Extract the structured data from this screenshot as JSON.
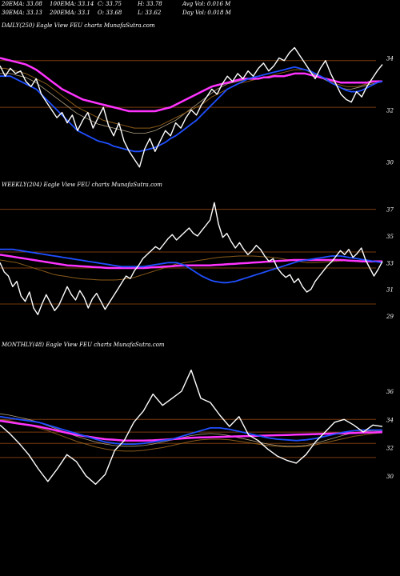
{
  "header": {
    "row1": [
      "20EMA: 33.08",
      "100EMA: 33.14",
      "C: 33.75",
      "H: 33.78",
      "Avg Vol: 0.016  M"
    ],
    "row2": [
      "30EMA: 33.13",
      "200EMA: 33.1",
      "O: 33.68",
      "L: 33.62",
      "Day Vol: 0.018  M"
    ]
  },
  "colors": {
    "background": "#000000",
    "price": "#ffffff",
    "ema_blue": "#1f4fff",
    "ema_magenta": "#ff33ff",
    "ema_orange": "#8a5a1a",
    "ema_gray": "#b0a080",
    "gridline": "#7a3a10"
  },
  "chart_data": [
    {
      "type": "line",
      "title": "DAILY(250) Eagle  View  FEU charts MunafaSutra.com",
      "yticks": [
        "34",
        "32",
        "30"
      ],
      "ylim": [
        29.3,
        35.0
      ],
      "price": [
        33.7,
        33.3,
        33.6,
        33.4,
        33.5,
        33.1,
        32.9,
        33.2,
        32.6,
        32.3,
        32.0,
        31.7,
        31.9,
        31.5,
        31.8,
        31.2,
        31.6,
        31.9,
        31.3,
        31.7,
        32.1,
        31.4,
        31.0,
        31.5,
        30.8,
        30.4,
        30.1,
        29.8,
        30.5,
        30.9,
        30.4,
        30.8,
        31.2,
        31.0,
        31.5,
        31.3,
        31.7,
        32.0,
        31.8,
        32.2,
        32.5,
        32.8,
        32.6,
        33.0,
        33.3,
        33.1,
        33.4,
        33.2,
        33.5,
        33.3,
        33.6,
        33.8,
        33.5,
        33.7,
        34.0,
        33.9,
        34.2,
        34.4,
        34.1,
        33.8,
        33.5,
        33.2,
        33.6,
        33.9,
        33.4,
        33.0,
        32.6,
        32.4,
        32.3,
        32.7,
        32.5,
        32.9,
        33.2,
        33.5,
        33.75
      ],
      "ema_blue": [
        33.3,
        33.3,
        33.3,
        33.2,
        33.1,
        33.0,
        32.9,
        32.8,
        32.6,
        32.4,
        32.2,
        32.0,
        31.8,
        31.6,
        31.4,
        31.2,
        31.1,
        31.0,
        30.9,
        30.8,
        30.75,
        30.7,
        30.6,
        30.55,
        30.5,
        30.45,
        30.4,
        30.4,
        30.45,
        30.5,
        30.55,
        30.65,
        30.75,
        30.9,
        31.0,
        31.15,
        31.3,
        31.45,
        31.6,
        31.8,
        32.0,
        32.2,
        32.4,
        32.6,
        32.8,
        32.9,
        33.0,
        33.1,
        33.2,
        33.25,
        33.3,
        33.35,
        33.4,
        33.45,
        33.5,
        33.55,
        33.6,
        33.65,
        33.6,
        33.55,
        33.5,
        33.4,
        33.3,
        33.2,
        33.05,
        32.95,
        32.85,
        32.75,
        32.7,
        32.7,
        32.75,
        32.85,
        32.95,
        33.05,
        33.1
      ],
      "ema_magenta": [
        34.0,
        33.95,
        33.9,
        33.85,
        33.8,
        33.75,
        33.65,
        33.55,
        33.4,
        33.25,
        33.1,
        32.95,
        32.8,
        32.7,
        32.6,
        32.5,
        32.4,
        32.35,
        32.3,
        32.25,
        32.2,
        32.15,
        32.1,
        32.05,
        32.0,
        31.95,
        31.95,
        31.95,
        31.95,
        31.95,
        31.95,
        32.0,
        32.05,
        32.1,
        32.2,
        32.3,
        32.4,
        32.5,
        32.6,
        32.7,
        32.8,
        32.9,
        32.95,
        33.0,
        33.05,
        33.1,
        33.15,
        33.2,
        33.2,
        33.2,
        33.2,
        33.25,
        33.25,
        33.3,
        33.3,
        33.3,
        33.35,
        33.4,
        33.4,
        33.4,
        33.35,
        33.3,
        33.25,
        33.2,
        33.15,
        33.1,
        33.05,
        33.05,
        33.05,
        33.05,
        33.05,
        33.05,
        33.1,
        33.1,
        33.1
      ],
      "ema_orange": [
        33.6,
        33.6,
        33.55,
        33.5,
        33.45,
        33.4,
        33.3,
        33.2,
        33.1,
        33.0,
        32.85,
        32.7,
        32.55,
        32.4,
        32.25,
        32.1,
        32.0,
        31.9,
        31.8,
        31.7,
        31.6,
        31.55,
        31.5,
        31.45,
        31.4,
        31.35,
        31.3,
        31.3,
        31.3,
        31.3,
        31.35,
        31.4,
        31.5,
        31.6,
        31.7,
        31.8,
        31.9,
        32.0,
        32.1,
        32.2,
        32.35,
        32.5,
        32.6,
        32.7,
        32.8,
        32.9,
        33.0,
        33.05,
        33.1,
        33.15,
        33.2,
        33.25,
        33.3,
        33.35,
        33.4,
        33.45,
        33.5,
        33.55,
        33.55,
        33.55,
        33.5,
        33.4,
        33.3,
        33.2,
        33.1,
        33.0,
        32.95,
        32.9,
        32.9,
        32.9,
        32.95,
        33.0,
        33.05,
        33.1,
        33.12
      ],
      "ema_gray": [
        33.4,
        33.4,
        33.4,
        33.35,
        33.3,
        33.25,
        33.15,
        33.05,
        32.9,
        32.75,
        32.6,
        32.45,
        32.3,
        32.15,
        32.0,
        31.85,
        31.75,
        31.65,
        31.55,
        31.45,
        31.4,
        31.35,
        31.3,
        31.25,
        31.2,
        31.15,
        31.1,
        31.1,
        31.1,
        31.15,
        31.2,
        31.3,
        31.4,
        31.5,
        31.6,
        31.75,
        31.9,
        32.05,
        32.2,
        32.35,
        32.5,
        32.65,
        32.8,
        32.9,
        33.0,
        33.05,
        33.1,
        33.15,
        33.2,
        33.25,
        33.3,
        33.35,
        33.4,
        33.45,
        33.5,
        33.55,
        33.6,
        33.65,
        33.6,
        33.55,
        33.45,
        33.35,
        33.25,
        33.15,
        33.05,
        32.95,
        32.85,
        32.8,
        32.8,
        32.85,
        32.9,
        32.95,
        33.0,
        33.05,
        33.08
      ],
      "hlines": [
        33.9,
        32.1
      ]
    },
    {
      "type": "line",
      "title": "WEEKLY(204) Eagle  View  FEU charts MunafaSutra.com",
      "yticks": [
        "37",
        "35",
        "33",
        "31",
        "29"
      ],
      "ylim": [
        27.5,
        38.0
      ],
      "price": [
        33.0,
        32.3,
        32.0,
        31.2,
        31.6,
        30.5,
        30.1,
        30.8,
        29.6,
        29.1,
        29.9,
        30.6,
        30.0,
        29.4,
        29.8,
        30.5,
        31.2,
        30.6,
        30.2,
        30.9,
        30.4,
        29.6,
        30.3,
        30.7,
        30.1,
        29.5,
        30.0,
        30.5,
        31.0,
        31.5,
        32.0,
        31.8,
        32.4,
        32.8,
        33.3,
        33.6,
        33.9,
        34.2,
        34.0,
        34.4,
        34.8,
        35.1,
        34.7,
        35.0,
        35.3,
        35.6,
        35.2,
        35.0,
        35.4,
        35.8,
        36.2,
        37.5,
        35.9,
        34.9,
        35.2,
        34.6,
        34.1,
        34.5,
        34.0,
        33.6,
        33.9,
        34.3,
        34.0,
        33.5,
        33.1,
        33.3,
        32.6,
        32.2,
        31.9,
        32.1,
        31.5,
        31.8,
        31.2,
        30.8,
        31.0,
        31.6,
        32.0,
        32.4,
        32.8,
        33.1,
        33.5,
        33.9,
        33.6,
        34.0,
        33.4,
        33.7,
        34.1,
        33.2,
        32.6,
        32.0,
        32.5,
        33.1
      ],
      "ema_blue": [
        34.0,
        34.0,
        34.0,
        34.0,
        33.95,
        33.9,
        33.85,
        33.8,
        33.75,
        33.7,
        33.65,
        33.6,
        33.55,
        33.5,
        33.45,
        33.4,
        33.35,
        33.3,
        33.25,
        33.2,
        33.15,
        33.1,
        33.05,
        33.0,
        32.95,
        32.9,
        32.85,
        32.8,
        32.75,
        32.7,
        32.7,
        32.7,
        32.7,
        32.7,
        32.7,
        32.75,
        32.8,
        32.85,
        32.9,
        32.95,
        33.0,
        33.0,
        33.0,
        32.9,
        32.8,
        32.6,
        32.4,
        32.2,
        32.0,
        31.85,
        31.7,
        31.6,
        31.55,
        31.5,
        31.5,
        31.55,
        31.6,
        31.7,
        31.8,
        31.9,
        32.0,
        32.1,
        32.2,
        32.3,
        32.4,
        32.5,
        32.6,
        32.7,
        32.8,
        32.9,
        33.0,
        33.1,
        33.15,
        33.2,
        33.25,
        33.3,
        33.35,
        33.4,
        33.45,
        33.5,
        33.5,
        33.5,
        33.45,
        33.4,
        33.35,
        33.3,
        33.25,
        33.2,
        33.15,
        33.1,
        33.05,
        33.0
      ],
      "ema_magenta": [
        33.6,
        33.55,
        33.5,
        33.45,
        33.4,
        33.35,
        33.3,
        33.25,
        33.2,
        33.15,
        33.1,
        33.05,
        33.0,
        32.95,
        32.9,
        32.85,
        32.8,
        32.78,
        32.76,
        32.74,
        32.72,
        32.7,
        32.68,
        32.66,
        32.64,
        32.62,
        32.6,
        32.6,
        32.6,
        32.6,
        32.6,
        32.6,
        32.6,
        32.6,
        32.6,
        32.62,
        32.64,
        32.66,
        32.68,
        32.7,
        32.72,
        32.74,
        32.76,
        32.78,
        32.8,
        32.8,
        32.8,
        32.8,
        32.8,
        32.8,
        32.8,
        32.82,
        32.84,
        32.86,
        32.88,
        32.9,
        32.92,
        32.94,
        32.96,
        32.98,
        33.0,
        33.02,
        33.04,
        33.06,
        33.08,
        33.1,
        33.12,
        33.14,
        33.16,
        33.18,
        33.2,
        33.2,
        33.2,
        33.2,
        33.2,
        33.2,
        33.2,
        33.2,
        33.2,
        33.2,
        33.2,
        33.2,
        33.18,
        33.16,
        33.14,
        33.12,
        33.1,
        33.1,
        33.1,
        33.1,
        33.1,
        33.1
      ],
      "ema_orange": [
        33.2,
        33.15,
        33.1,
        33.05,
        33.0,
        32.9,
        32.8,
        32.7,
        32.6,
        32.5,
        32.4,
        32.3,
        32.2,
        32.1,
        32.05,
        32.0,
        31.95,
        31.9,
        31.85,
        31.8,
        31.78,
        31.76,
        31.74,
        31.72,
        31.7,
        31.7,
        31.7,
        31.7,
        31.72,
        31.75,
        31.8,
        31.85,
        31.9,
        32.0,
        32.1,
        32.2,
        32.3,
        32.4,
        32.5,
        32.6,
        32.7,
        32.8,
        32.9,
        32.95,
        33.0,
        33.05,
        33.1,
        33.15,
        33.2,
        33.25,
        33.3,
        33.35,
        33.4,
        33.42,
        33.44,
        33.46,
        33.48,
        33.5,
        33.5,
        33.5,
        33.5,
        33.48,
        33.46,
        33.44,
        33.42,
        33.4,
        33.35,
        33.3,
        33.25,
        33.2,
        33.15,
        33.1,
        33.05,
        33.0,
        33.0,
        33.0,
        33.02,
        33.04,
        33.06,
        33.08,
        33.1,
        33.12,
        33.14,
        33.16,
        33.16,
        33.16,
        33.16,
        33.14,
        33.12,
        33.1,
        33.08,
        33.08
      ],
      "hlines": [
        37.0,
        33.8,
        32.6,
        29.9
      ]
    },
    {
      "type": "line",
      "title": "MONTHLY(48) Eagle  View  FEU charts MunafaSutra.com",
      "yticks": [
        "36",
        "34",
        "32",
        "30"
      ],
      "ylim": [
        28.0,
        38.5
      ],
      "price": [
        33.6,
        33.0,
        32.3,
        31.5,
        30.5,
        29.6,
        30.5,
        31.5,
        31.0,
        30.0,
        29.4,
        30.1,
        31.8,
        32.5,
        33.8,
        34.6,
        35.8,
        35.0,
        35.5,
        36.0,
        37.5,
        35.5,
        35.2,
        34.3,
        33.5,
        34.2,
        32.9,
        32.5,
        31.9,
        31.4,
        31.1,
        30.9,
        31.5,
        32.4,
        33.1,
        33.8,
        34.0,
        33.6,
        33.1,
        33.6,
        33.5
      ],
      "ema_blue": [
        34.2,
        34.1,
        34.0,
        33.9,
        33.8,
        33.6,
        33.4,
        33.2,
        33.0,
        32.8,
        32.6,
        32.4,
        32.3,
        32.25,
        32.25,
        32.3,
        32.4,
        32.5,
        32.6,
        32.8,
        33.0,
        33.2,
        33.4,
        33.4,
        33.3,
        33.15,
        33.0,
        32.85,
        32.7,
        32.6,
        32.55,
        32.5,
        32.55,
        32.65,
        32.8,
        32.95,
        33.1,
        33.2,
        33.25,
        33.25,
        33.25
      ],
      "ema_magenta": [
        33.9,
        33.8,
        33.7,
        33.6,
        33.5,
        33.35,
        33.2,
        33.05,
        32.9,
        32.8,
        32.7,
        32.6,
        32.55,
        32.5,
        32.5,
        32.5,
        32.52,
        32.55,
        32.6,
        32.65,
        32.7,
        32.72,
        32.74,
        32.76,
        32.78,
        32.8,
        32.82,
        32.84,
        32.86,
        32.88,
        32.9,
        32.92,
        32.94,
        32.96,
        32.98,
        33.0,
        33.02,
        33.04,
        33.06,
        33.08,
        33.1
      ],
      "ema_orange": [
        34.0,
        33.9,
        33.75,
        33.6,
        33.4,
        33.2,
        32.95,
        32.7,
        32.45,
        32.25,
        32.05,
        31.9,
        31.8,
        31.75,
        31.75,
        31.8,
        31.9,
        32.0,
        32.15,
        32.3,
        32.45,
        32.55,
        32.6,
        32.6,
        32.55,
        32.45,
        32.35,
        32.25,
        32.15,
        32.1,
        32.05,
        32.05,
        32.1,
        32.2,
        32.35,
        32.5,
        32.65,
        32.8,
        32.9,
        33.0,
        33.05
      ],
      "ema_gray": [
        34.4,
        34.3,
        34.15,
        34.0,
        33.8,
        33.55,
        33.3,
        33.05,
        32.8,
        32.6,
        32.4,
        32.25,
        32.15,
        32.1,
        32.1,
        32.15,
        32.25,
        32.4,
        32.55,
        32.7,
        32.85,
        32.95,
        33.0,
        32.95,
        32.85,
        32.7,
        32.55,
        32.4,
        32.25,
        32.15,
        32.1,
        32.1,
        32.15,
        32.3,
        32.5,
        32.7,
        32.9,
        33.05,
        33.15,
        33.2,
        33.2
      ],
      "hlines": [
        34.0,
        33.1,
        32.3,
        31.3
      ]
    }
  ]
}
